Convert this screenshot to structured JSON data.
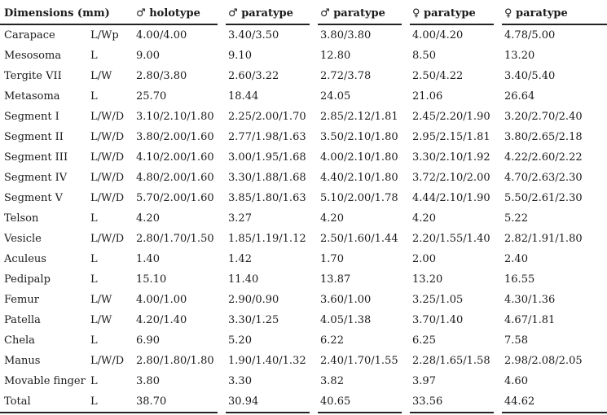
{
  "table": {
    "header_dimensions": "Dimensions (mm)",
    "columns": [
      "♂ holotype",
      "♂ paratype",
      "♂ paratype",
      "♀ paratype",
      "♀ paratype"
    ],
    "rows": [
      {
        "part": "Carapace",
        "measure": "L/Wp",
        "values": [
          "4.00/4.00",
          "3.40/3.50",
          "3.80/3.80",
          "4.00/4.20",
          "4.78/5.00"
        ]
      },
      {
        "part": "Mesosoma",
        "measure": "L",
        "values": [
          "9.00",
          "9.10",
          "12.80",
          "8.50",
          "13.20"
        ]
      },
      {
        "part": "Tergite VII",
        "measure": "L/W",
        "values": [
          "2.80/3.80",
          "2.60/3.22",
          "2.72/3.78",
          "2.50/4.22",
          "3.40/5.40"
        ]
      },
      {
        "part": "Metasoma",
        "measure": "L",
        "values": [
          "25.70",
          "18.44",
          "24.05",
          "21.06",
          "26.64"
        ]
      },
      {
        "part": "Segment I",
        "measure": "L/W/D",
        "values": [
          "3.10/2.10/1.80",
          "2.25/2.00/1.70",
          "2.85/2.12/1.81",
          "2.45/2.20/1.90",
          "3.20/2.70/2.40"
        ]
      },
      {
        "part": "Segment II",
        "measure": "L/W/D",
        "values": [
          "3.80/2.00/1.60",
          "2.77/1.98/1.63",
          "3.50/2.10/1.80",
          "2.95/2.15/1.81",
          "3.80/2.65/2.18"
        ]
      },
      {
        "part": "Segment III",
        "measure": "L/W/D",
        "values": [
          "4.10/2.00/1.60",
          "3.00/1.95/1.68",
          "4.00/2.10/1.80",
          "3.30/2.10/1.92",
          "4.22/2.60/2.22"
        ]
      },
      {
        "part": "Segment IV",
        "measure": "L/W/D",
        "values": [
          "4.80/2.00/1.60",
          "3.30/1.88/1.68",
          "4.40/2.10/1.80",
          "3.72/2.10/2.00",
          "4.70/2.63/2.30"
        ]
      },
      {
        "part": "Segment V",
        "measure": "L/W/D",
        "values": [
          "5.70/2.00/1.60",
          "3.85/1.80/1.63",
          "5.10/2.00/1.78",
          "4.44/2.10/1.90",
          "5.50/2.61/2.30"
        ]
      },
      {
        "part": "Telson",
        "measure": "L",
        "values": [
          "4.20",
          "3.27",
          "4.20",
          "4.20",
          "5.22"
        ]
      },
      {
        "part": "Vesicle",
        "measure": "L/W/D",
        "values": [
          "2.80/1.70/1.50",
          "1.85/1.19/1.12",
          "2.50/1.60/1.44",
          "2.20/1.55/1.40",
          "2.82/1.91/1.80"
        ]
      },
      {
        "part": "Aculeus",
        "measure": "L",
        "values": [
          "1.40",
          "1.42",
          "1.70",
          "2.00",
          "2.40"
        ]
      },
      {
        "part": "Pedipalp",
        "measure": "L",
        "values": [
          "15.10",
          "11.40",
          "13.87",
          "13.20",
          "16.55"
        ]
      },
      {
        "part": "Femur",
        "measure": "L/W",
        "values": [
          "4.00/1.00",
          "2.90/0.90",
          "3.60/1.00",
          "3.25/1.05",
          "4.30/1.36"
        ]
      },
      {
        "part": "Patella",
        "measure": "L/W",
        "values": [
          "4.20/1.40",
          "3.30/1.25",
          "4.05/1.38",
          "3.70/1.40",
          "4.67/1.81"
        ]
      },
      {
        "part": "Chela",
        "measure": "L",
        "values": [
          "6.90",
          "5.20",
          "6.22",
          "6.25",
          "7.58"
        ]
      },
      {
        "part": "Manus",
        "measure": "L/W/D",
        "values": [
          "2.80/1.80/1.80",
          "1.90/1.40/1.32",
          "2.40/1.70/1.55",
          "2.28/1.65/1.58",
          "2.98/2.08/2.05"
        ]
      },
      {
        "part": "Movable finger",
        "measure": "L",
        "values": [
          "3.80",
          "3.30",
          "3.82",
          "3.97",
          "4.60"
        ]
      },
      {
        "part": "Total",
        "measure": "L",
        "values": [
          "38.70",
          "30.94",
          "40.65",
          "33.56",
          "44.62"
        ]
      }
    ]
  }
}
